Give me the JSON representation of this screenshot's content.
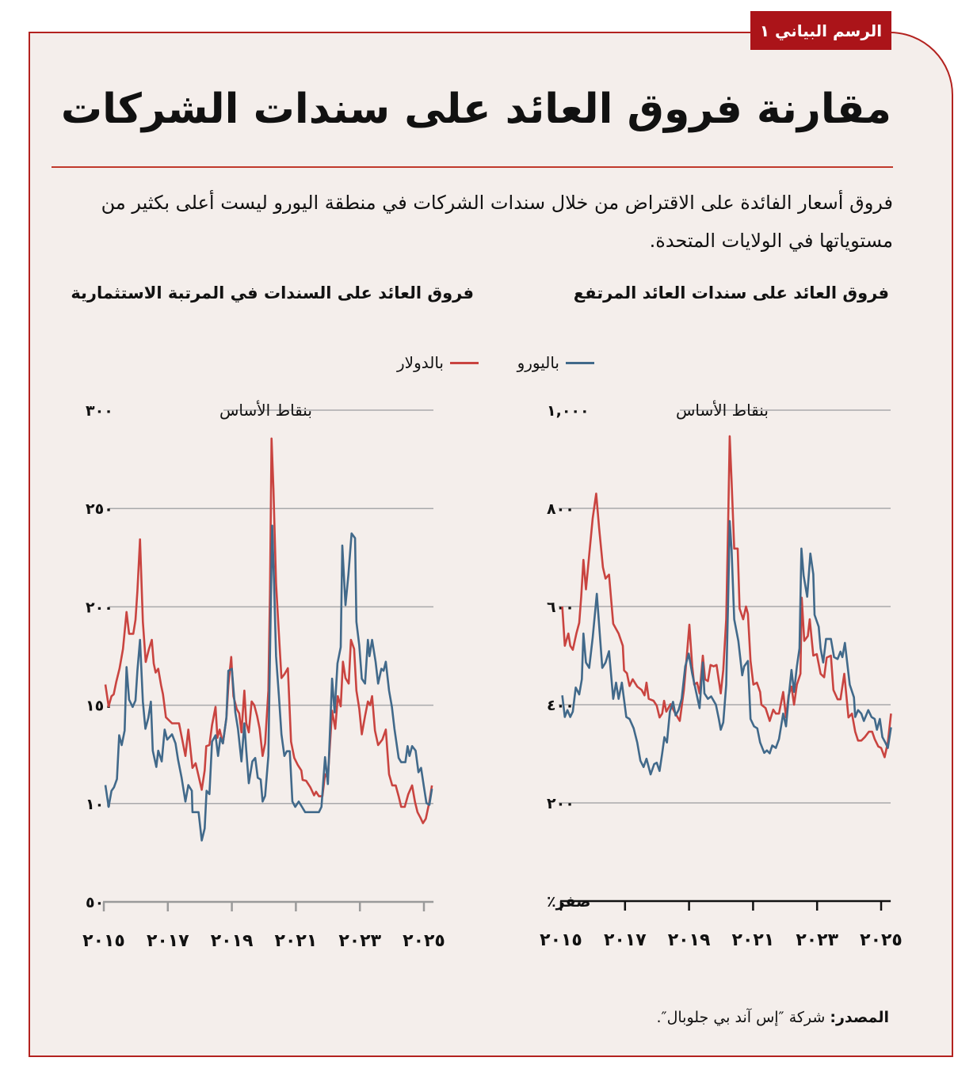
{
  "tag": "الرسم البياني ١",
  "title": "مقارنة فروق العائد على سندات الشركات",
  "subtitle": "فروق أسعار الفائدة على الاقتراض من خلال سندات الشركات في منطقة اليورو ليست أعلى بكثير من مستوياتها في الولايات المتحدة.",
  "legend": [
    {
      "label": "باليورو",
      "color": "#41698a"
    },
    {
      "label": "بالدولار",
      "color": "#c94440"
    }
  ],
  "source": {
    "label": "المصدر:",
    "text": " شركة ″إس آند بي جلوبال″."
  },
  "chart_data": [
    {
      "type": "line",
      "title": "فروق العائد على سندات العائد المرتفع",
      "ylabel": "بنقاط الأساس",
      "ylim": [
        0,
        1000
      ],
      "yticks": [
        0,
        200,
        400,
        600,
        800,
        1000
      ],
      "ytick_labels": [
        "صفر٪",
        "٢٠٠",
        "٤٠٠",
        "٦٠٠",
        "٨٠٠",
        "١,٠٠٠"
      ],
      "xlim": [
        2015,
        2025.3
      ],
      "xticks": [
        2015,
        2017,
        2019,
        2021,
        2023,
        2025
      ],
      "xtick_labels": [
        "٢٠١٥",
        "٢٠١٧",
        "٢٠١٩",
        "٢٠٢١",
        "٢٠٢٣",
        "٢٠٢٥"
      ],
      "grid": true,
      "series": [
        {
          "name": "بالدولار",
          "color": "#c94440",
          "x": [
            2015.04,
            2015.12,
            2015.23,
            2015.29,
            2015.37,
            2015.48,
            2015.57,
            2015.63,
            2015.7,
            2015.78,
            2015.88,
            2015.99,
            2016.1,
            2016.19,
            2016.31,
            2016.39,
            2016.5,
            2016.63,
            2016.8,
            2016.93,
            2016.97,
            2017.06,
            2017.14,
            2017.24,
            2017.38,
            2017.52,
            2017.61,
            2017.67,
            2017.74,
            2017.89,
            2017.99,
            2018.08,
            2018.16,
            2018.22,
            2018.29,
            2018.42,
            2018.54,
            2018.71,
            2018.84,
            2018.93,
            2019.01,
            2019.1,
            2019.16,
            2019.25,
            2019.33,
            2019.43,
            2019.5,
            2019.59,
            2019.67,
            2019.77,
            2019.86,
            2019.99,
            2020.07,
            2020.16,
            2020.22,
            2020.27,
            2020.33,
            2020.41,
            2020.52,
            2020.58,
            2020.69,
            2020.78,
            2020.84,
            2020.92,
            2021.01,
            2021.12,
            2021.22,
            2021.26,
            2021.39,
            2021.52,
            2021.63,
            2021.71,
            2021.81,
            2021.94,
            2022.03,
            2022.11,
            2022.2,
            2022.28,
            2022.37,
            2022.48,
            2022.52,
            2022.6,
            2022.71,
            2022.77,
            2022.88,
            2022.99,
            2023.11,
            2023.22,
            2023.3,
            2023.43,
            2023.51,
            2023.64,
            2023.73,
            2023.85,
            2023.98,
            2024.09,
            2024.19,
            2024.28,
            2024.38,
            2024.49,
            2024.62,
            2024.72,
            2024.8,
            2024.91,
            2025.0,
            2025.11,
            2025.21,
            2025.31
          ],
          "y": [
            600,
            520,
            545,
            520,
            512,
            545,
            567,
            620,
            695,
            635,
            705,
            780,
            830,
            760,
            680,
            657,
            665,
            565,
            545,
            520,
            470,
            464,
            438,
            452,
            437,
            430,
            419,
            445,
            412,
            408,
            398,
            374,
            382,
            408,
            386,
            401,
            386,
            367,
            430,
            500,
            563,
            478,
            441,
            445,
            423,
            500,
            452,
            448,
            481,
            478,
            481,
            423,
            471,
            574,
            766,
            947,
            855,
            718,
            718,
            596,
            574,
            600,
            585,
            489,
            441,
            445,
            426,
            400,
            393,
            367,
            390,
            382,
            382,
            426,
            374,
            419,
            437,
            400,
            441,
            463,
            618,
            530,
            540,
            574,
            500,
            503,
            463,
            456,
            496,
            500,
            430,
            411,
            411,
            463,
            374,
            382,
            345,
            327,
            327,
            334,
            345,
            345,
            330,
            315,
            312,
            293,
            323,
            382
          ]
        },
        {
          "name": "باليورو",
          "color": "#41698a",
          "x": [
            2015.04,
            2015.12,
            2015.2,
            2015.29,
            2015.37,
            2015.46,
            2015.57,
            2015.65,
            2015.7,
            2015.78,
            2015.88,
            2015.99,
            2016.12,
            2016.21,
            2016.29,
            2016.39,
            2016.5,
            2016.63,
            2016.72,
            2016.8,
            2016.9,
            2017.04,
            2017.14,
            2017.27,
            2017.38,
            2017.48,
            2017.58,
            2017.67,
            2017.8,
            2017.91,
            2017.99,
            2018.08,
            2018.16,
            2018.23,
            2018.31,
            2018.4,
            2018.5,
            2018.58,
            2018.67,
            2018.77,
            2018.88,
            2018.99,
            2019.1,
            2019.22,
            2019.33,
            2019.43,
            2019.48,
            2019.59,
            2019.69,
            2019.84,
            2019.93,
            2019.99,
            2020.07,
            2020.16,
            2020.22,
            2020.27,
            2020.33,
            2020.41,
            2020.54,
            2020.66,
            2020.72,
            2020.84,
            2020.92,
            2021.03,
            2021.13,
            2021.22,
            2021.35,
            2021.43,
            2021.52,
            2021.6,
            2021.71,
            2021.81,
            2021.94,
            2022.03,
            2022.11,
            2022.2,
            2022.28,
            2022.37,
            2022.45,
            2022.51,
            2022.58,
            2022.69,
            2022.79,
            2022.88,
            2022.92,
            2023.05,
            2023.11,
            2023.19,
            2023.28,
            2023.43,
            2023.53,
            2023.64,
            2023.73,
            2023.79,
            2023.87,
            2024.02,
            2024.15,
            2024.19,
            2024.28,
            2024.38,
            2024.46,
            2024.6,
            2024.7,
            2024.8,
            2024.87,
            2024.96,
            2025.04,
            2025.13,
            2025.21,
            2025.31
          ],
          "y": [
            419,
            375,
            389,
            375,
            386,
            435,
            421,
            452,
            545,
            486,
            475,
            537,
            626,
            545,
            475,
            486,
            509,
            412,
            445,
            412,
            445,
            375,
            371,
            352,
            323,
            286,
            273,
            290,
            258,
            279,
            282,
            265,
            301,
            334,
            323,
            386,
            406,
            378,
            389,
            412,
            478,
            504,
            463,
            426,
            393,
            486,
            423,
            412,
            417,
            400,
            371,
            349,
            364,
            441,
            611,
            774,
            715,
            574,
            530,
            460,
            478,
            489,
            371,
            356,
            352,
            323,
            302,
            307,
            301,
            317,
            312,
            330,
            382,
            356,
            413,
            471,
            426,
            478,
            515,
            718,
            663,
            620,
            708,
            666,
            583,
            559,
            515,
            486,
            534,
            534,
            497,
            493,
            508,
            497,
            526,
            441,
            415,
            375,
            389,
            382,
            367,
            389,
            375,
            371,
            349,
            371,
            334,
            323,
            312,
            354
          ]
        }
      ]
    },
    {
      "type": "line",
      "title": "فروق العائد على السندات في المرتبة الاستثمارية",
      "ylabel": "بنقاط الأساس",
      "ylim": [
        50,
        300
      ],
      "yticks": [
        50,
        100,
        150,
        200,
        250,
        300
      ],
      "ytick_labels": [
        "٥٠",
        "١٠٠",
        "١٥٠",
        "٢٠٠",
        "٢٥٠",
        "٣٠٠"
      ],
      "xlim": [
        2015,
        2025.3
      ],
      "xticks": [
        2015,
        2017,
        2019,
        2021,
        2023,
        2025
      ],
      "xtick_labels": [
        "٢٠١٥",
        "٢٠١٧",
        "٢٠١٩",
        "٢٠٢١",
        "٢٠٢٣",
        "٢٠٢٥"
      ],
      "grid": true,
      "series": [
        {
          "name": "بالدولار",
          "color": "#c94440",
          "x": [
            2015.05,
            2015.15,
            2015.24,
            2015.31,
            2015.39,
            2015.49,
            2015.6,
            2015.71,
            2015.79,
            2015.92,
            2015.99,
            2016.05,
            2016.13,
            2016.22,
            2016.31,
            2016.41,
            2016.5,
            2016.56,
            2016.62,
            2016.7,
            2016.79,
            2016.85,
            2016.94,
            2017.02,
            2017.13,
            2017.35,
            2017.45,
            2017.55,
            2017.64,
            2017.77,
            2017.87,
            2017.96,
            2018.06,
            2018.15,
            2018.2,
            2018.3,
            2018.38,
            2018.49,
            2018.55,
            2018.62,
            2018.72,
            2018.83,
            2018.89,
            2018.98,
            2019.05,
            2019.15,
            2019.23,
            2019.3,
            2019.39,
            2019.45,
            2019.53,
            2019.62,
            2019.7,
            2019.79,
            2019.87,
            2019.96,
            2020.04,
            2020.14,
            2020.19,
            2020.24,
            2020.3,
            2020.38,
            2020.47,
            2020.55,
            2020.64,
            2020.75,
            2020.85,
            2020.95,
            2021.06,
            2021.17,
            2021.21,
            2021.32,
            2021.45,
            2021.57,
            2021.63,
            2021.72,
            2021.83,
            2021.91,
            2022.0,
            2022.13,
            2022.23,
            2022.31,
            2022.4,
            2022.47,
            2022.55,
            2022.65,
            2022.72,
            2022.82,
            2022.89,
            2022.98,
            2023.06,
            2023.16,
            2023.25,
            2023.32,
            2023.38,
            2023.47,
            2023.57,
            2023.7,
            2023.81,
            2023.91,
            2024.01,
            2024.12,
            2024.21,
            2024.29,
            2024.4,
            2024.51,
            2024.63,
            2024.72,
            2024.8,
            2024.89,
            2024.97,
            2025.06,
            2025.17,
            2025.25
          ],
          "y": [
            160.5,
            149.4,
            154.6,
            155.5,
            162,
            168.5,
            178.6,
            197.4,
            186.3,
            186.3,
            193.4,
            208,
            234.3,
            192.4,
            172,
            178.6,
            183.2,
            171.2,
            166.6,
            168.5,
            160.1,
            155.5,
            143.9,
            142.6,
            140.8,
            140.8,
            132.5,
            124.2,
            137.6,
            118.1,
            120.5,
            114,
            107,
            116.8,
            129.2,
            129.7,
            139.9,
            149.1,
            133.4,
            137.6,
            130.6,
            143.5,
            160.1,
            174.5,
            154.6,
            148.2,
            145.8,
            136.2,
            157.4,
            140.8,
            136.2,
            151.9,
            150,
            144.5,
            138,
            124.2,
            130.6,
            157.4,
            206.3,
            285.6,
            259.8,
            211.8,
            186,
            163.8,
            165.7,
            168.8,
            131.5,
            123.2,
            119.6,
            116.8,
            112,
            111.6,
            108.3,
            104.2,
            106,
            103.7,
            103.7,
            114.9,
            113.1,
            147.2,
            138,
            154.6,
            149.4,
            172.1,
            163.8,
            161,
            183.2,
            178.6,
            157.4,
            148.2,
            135.2,
            144.5,
            151.9,
            150,
            154.6,
            137.1,
            129.7,
            132.5,
            137.6,
            114.9,
            109.2,
            109.2,
            103.7,
            98.3,
            98.3,
            104.7,
            109.2,
            100.9,
            95.6,
            92.8,
            90,
            92.3,
            100.9,
            109.2
          ]
        },
        {
          "name": "باليورو",
          "color": "#41698a",
          "x": [
            2015.05,
            2015.15,
            2015.24,
            2015.32,
            2015.41,
            2015.48,
            2015.56,
            2015.65,
            2015.71,
            2015.79,
            2015.9,
            2015.99,
            2016.05,
            2016.13,
            2016.22,
            2016.3,
            2016.39,
            2016.47,
            2016.53,
            2016.64,
            2016.7,
            2016.81,
            2016.9,
            2016.98,
            2017.13,
            2017.24,
            2017.32,
            2017.43,
            2017.55,
            2017.64,
            2017.75,
            2017.77,
            2017.96,
            2018.06,
            2018.15,
            2018.21,
            2018.3,
            2018.38,
            2018.49,
            2018.57,
            2018.64,
            2018.72,
            2018.83,
            2018.89,
            2019.0,
            2019.11,
            2019.19,
            2019.3,
            2019.39,
            2019.45,
            2019.53,
            2019.64,
            2019.73,
            2019.81,
            2019.9,
            2019.96,
            2020.04,
            2020.14,
            2020.19,
            2020.26,
            2020.32,
            2020.38,
            2020.47,
            2020.55,
            2020.64,
            2020.72,
            2020.81,
            2020.89,
            2020.98,
            2021.09,
            2021.19,
            2021.29,
            2021.72,
            2021.8,
            2021.91,
            2022.0,
            2022.13,
            2022.21,
            2022.3,
            2022.4,
            2022.45,
            2022.55,
            2022.64,
            2022.74,
            2022.85,
            2022.89,
            2022.98,
            2023.06,
            2023.16,
            2023.25,
            2023.3,
            2023.38,
            2023.49,
            2023.57,
            2023.67,
            2023.74,
            2023.81,
            2023.91,
            2024.0,
            2024.08,
            2024.21,
            2024.29,
            2024.42,
            2024.49,
            2024.55,
            2024.63,
            2024.74,
            2024.83,
            2024.91,
            2025.0,
            2025.08,
            2025.17,
            2025.25
          ],
          "y": [
            109.4,
            98.3,
            106.5,
            108.3,
            112.5,
            134.7,
            129.7,
            137.1,
            169.4,
            152.8,
            149.1,
            152.4,
            167.5,
            183.2,
            151.8,
            138,
            143.5,
            151.8,
            126.9,
            118.6,
            126.9,
            121.4,
            137.6,
            132.5,
            135.2,
            130.6,
            122.3,
            113.1,
            101,
            109.4,
            106.5,
            95.6,
            95.6,
            81.2,
            87.3,
            106.5,
            104.8,
            131.5,
            134.7,
            124.2,
            133.4,
            130.6,
            143.5,
            167.5,
            168.5,
            146.3,
            138,
            121.4,
            140.8,
            126.9,
            110.3,
            121.4,
            123.2,
            113.1,
            112.2,
            101,
            103.9,
            124.2,
            174.9,
            241.3,
            211.8,
            174.9,
            154.6,
            135.2,
            124.2,
            126.6,
            126.6,
            101,
            98.3,
            101,
            98.3,
            95.6,
            95.6,
            98.3,
            123.6,
            109.9,
            163.5,
            146.3,
            171.2,
            179.5,
            231.2,
            200.9,
            216.4,
            237.3,
            234.9,
            192.4,
            180.4,
            163.5,
            161,
            183.2,
            174.9,
            183.2,
            172.1,
            161,
            168.5,
            167.5,
            172.1,
            157.4,
            149.1,
            138,
            123.2,
            121,
            121,
            129.2,
            124.2,
            129.2,
            126.9,
            115.9,
            118.1,
            108.5,
            100.2,
            99.3,
            107.5
          ]
        }
      ]
    }
  ]
}
